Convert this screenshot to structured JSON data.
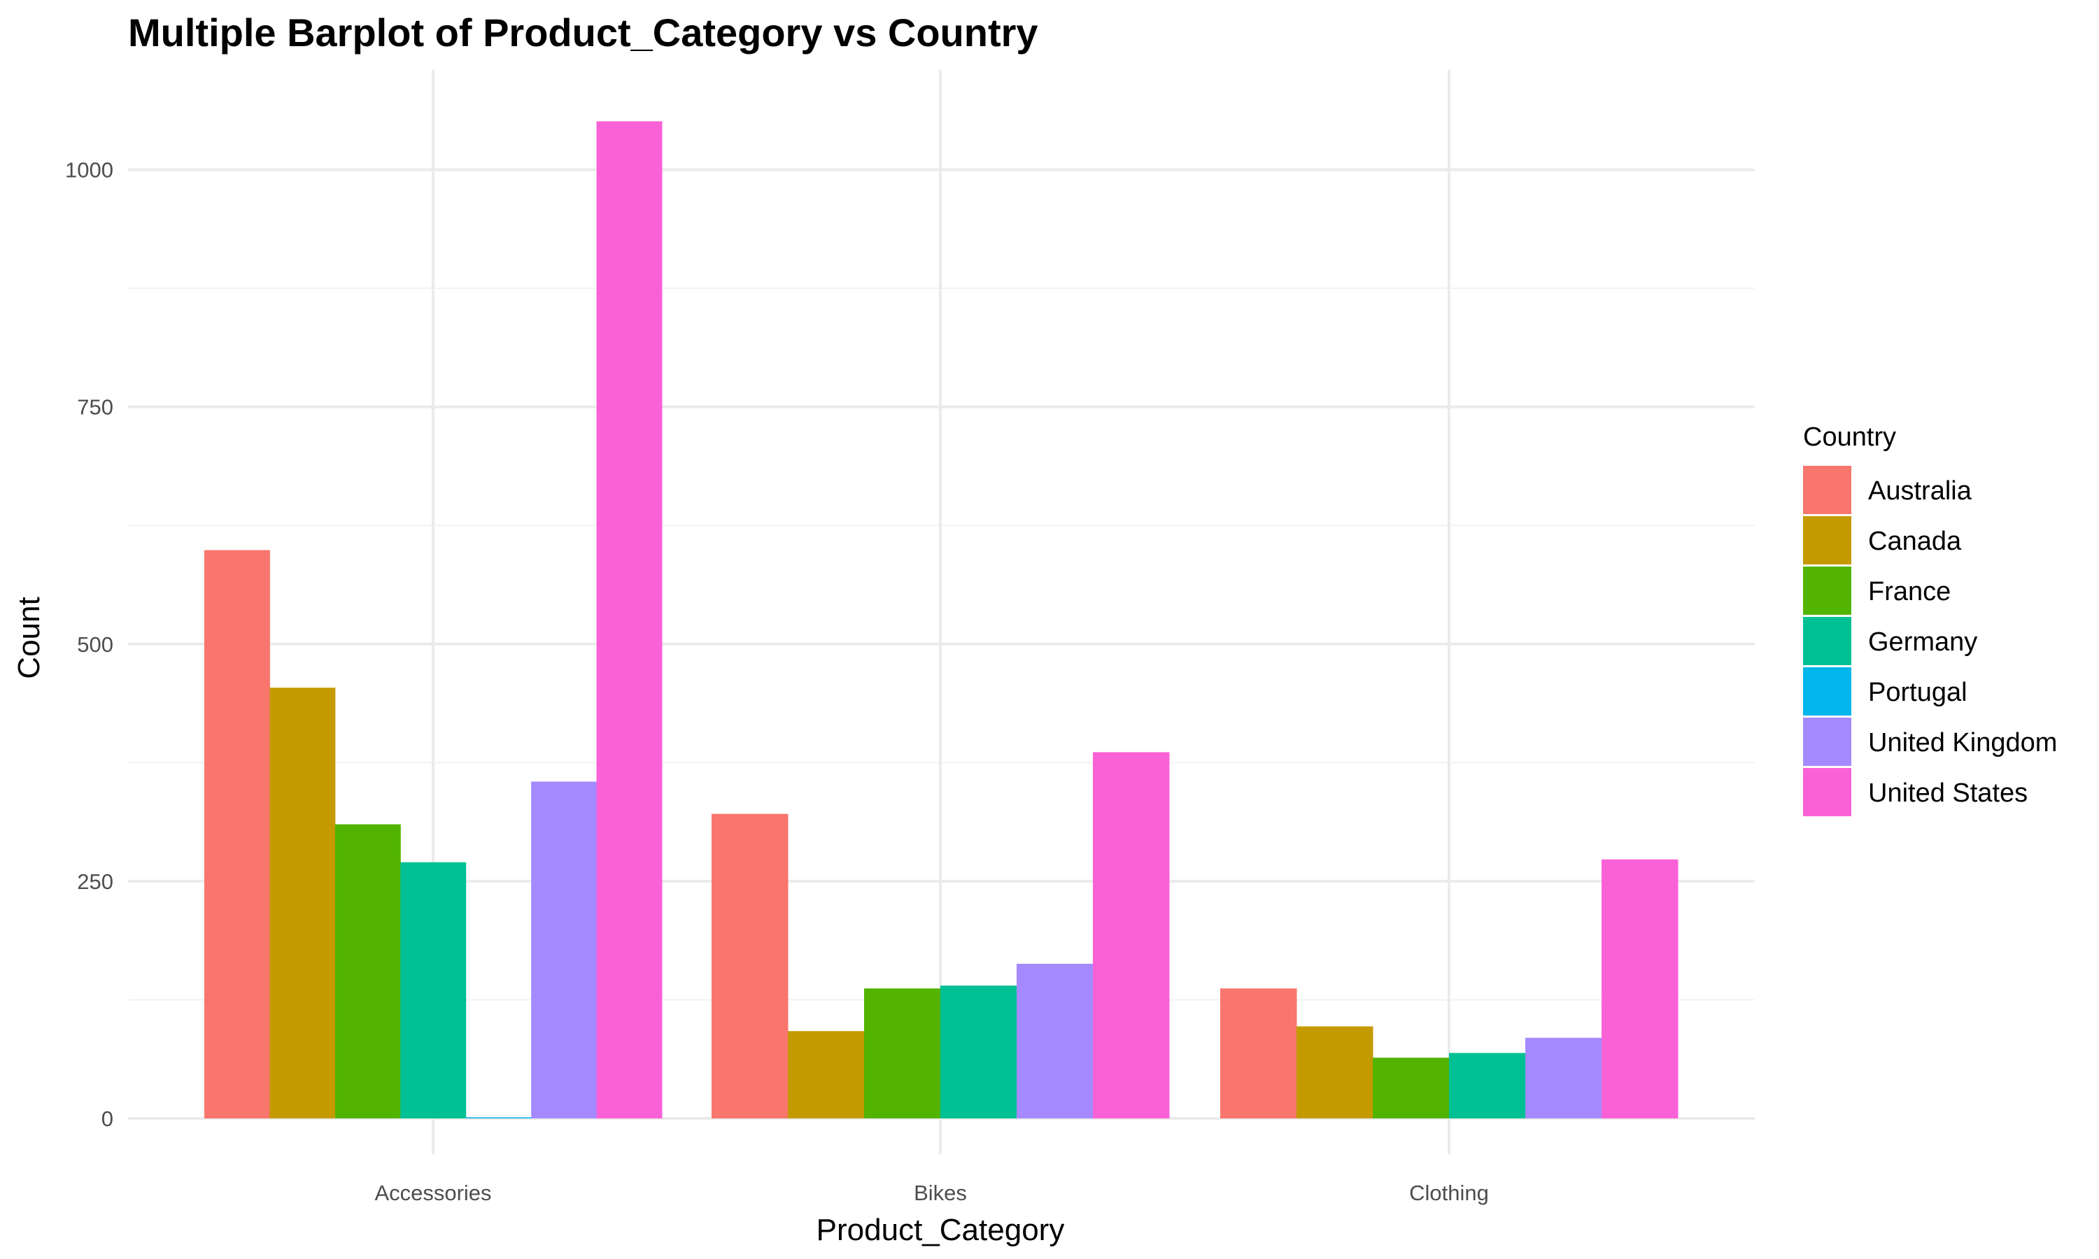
{
  "chart_data": {
    "type": "bar",
    "title": "Multiple Barplot of Product_Category vs Country",
    "xlabel": "Product_Category",
    "ylabel": "Count",
    "categories": [
      "Accessories",
      "Bikes",
      "Clothing"
    ],
    "ylim": [
      0,
      1075
    ],
    "yticks": [
      0,
      250,
      500,
      750,
      1000
    ],
    "grid": true,
    "legend": {
      "title": "Country",
      "position": "right"
    },
    "series": [
      {
        "name": "Australia",
        "color": "#F8766D",
        "values": [
          599,
          321,
          137
        ]
      },
      {
        "name": "Canada",
        "color": "#C49A00",
        "values": [
          454,
          92,
          97
        ]
      },
      {
        "name": "France",
        "color": "#53B400",
        "values": [
          310,
          137,
          64
        ]
      },
      {
        "name": "Germany",
        "color": "#00C094",
        "values": [
          270,
          140,
          69
        ]
      },
      {
        "name": "Portugal",
        "color": "#00B6EB",
        "values": [
          1,
          null,
          null
        ]
      },
      {
        "name": "United Kingdom",
        "color": "#A58AFF",
        "values": [
          355,
          163,
          85
        ]
      },
      {
        "name": "United States",
        "color": "#FB61D7",
        "values": [
          1051,
          386,
          273
        ]
      }
    ]
  }
}
